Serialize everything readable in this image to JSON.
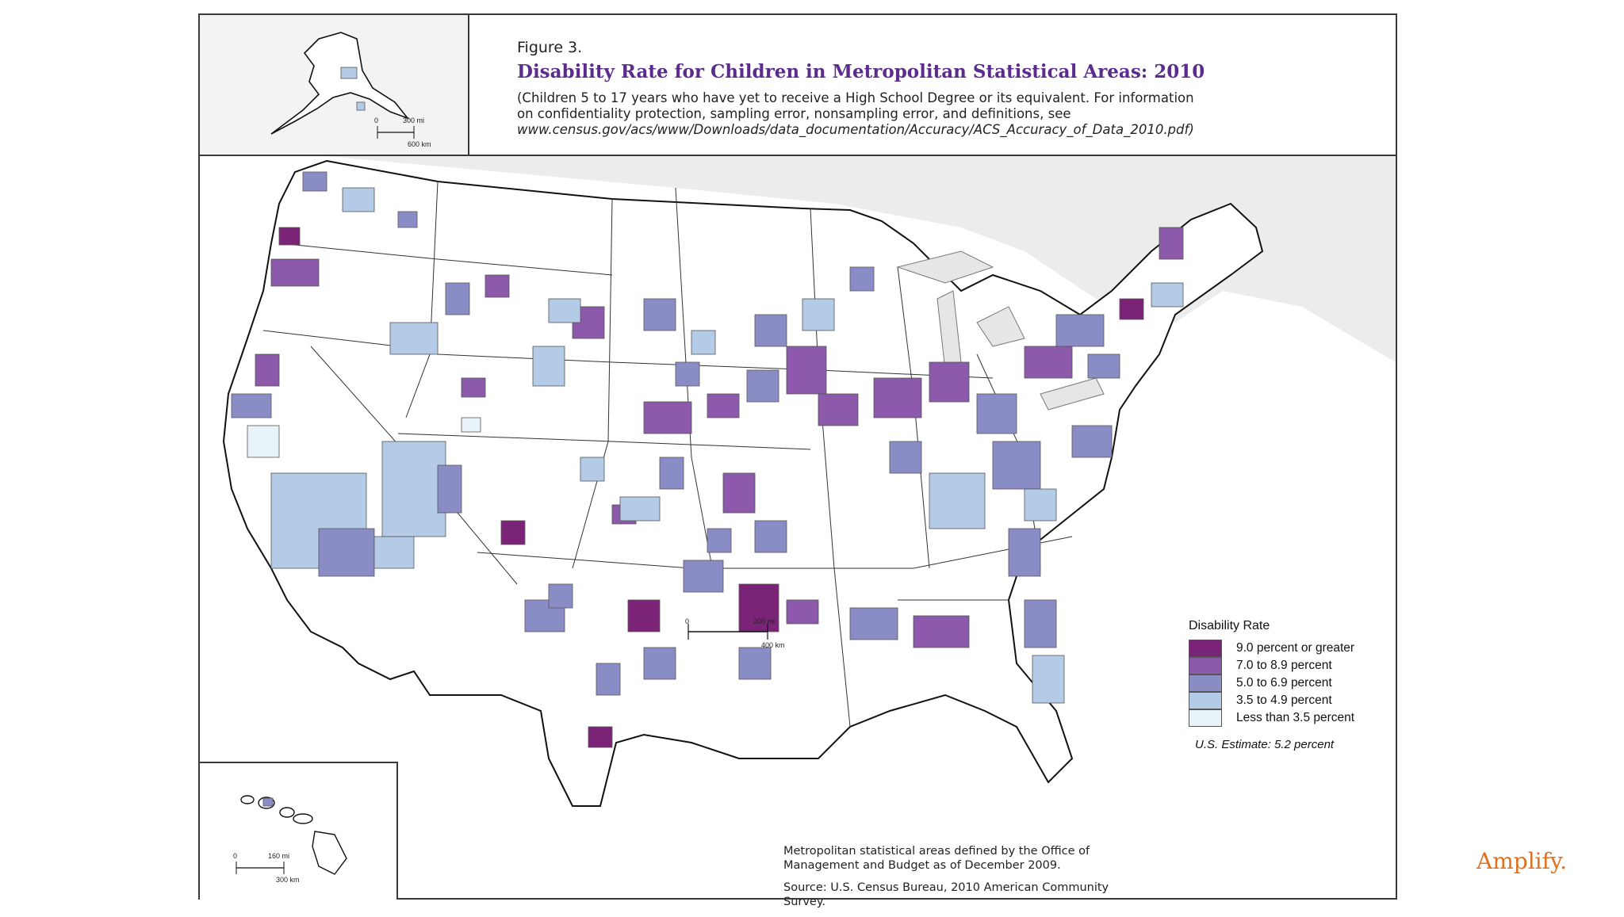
{
  "figure": {
    "number": "Figure 3.",
    "title": "Disability Rate for Children in Metropolitan Statistical Areas: 2010",
    "subtitle_line1": "(Children 5 to 17 years who have yet to receive a High School Degree or its equivalent. For information",
    "subtitle_line2": "on confidentiality protection, sampling error, nonsampling error, and definitions, see",
    "subtitle_url": "www.census.gov/acs/www/Downloads/data_documentation/Accuracy/ACS_Accuracy_of_Data_2010.pdf)"
  },
  "legend": {
    "title": "Disability Rate",
    "classes": [
      {
        "label": "9.0 percent or greater",
        "color": "#7b2477"
      },
      {
        "label": "7.0 to 8.9 percent",
        "color": "#8d5aab"
      },
      {
        "label": "5.0 to 6.9 percent",
        "color": "#8a8cc6"
      },
      {
        "label": "3.5 to 4.9 percent",
        "color": "#b3cbe6"
      },
      {
        "label": "Less than 3.5 percent",
        "color": "#e8f3fa"
      }
    ],
    "us_estimate": "U.S. Estimate: 5.2 percent"
  },
  "scales": {
    "main_mi": "200 mi",
    "main_km": "400 km",
    "alaska_mi": "300 mi",
    "alaska_km": "600 km",
    "hawaii_mi": "160 mi",
    "hawaii_km": "300 km",
    "zero": "0"
  },
  "notes": {
    "line1": "Metropolitan statistical areas defined by the Office of",
    "line2": "Management and Budget as of December 2009.",
    "source": "Source: U.S. Census Bureau, 2010 American Community Survey."
  },
  "brand": "Amplify."
}
